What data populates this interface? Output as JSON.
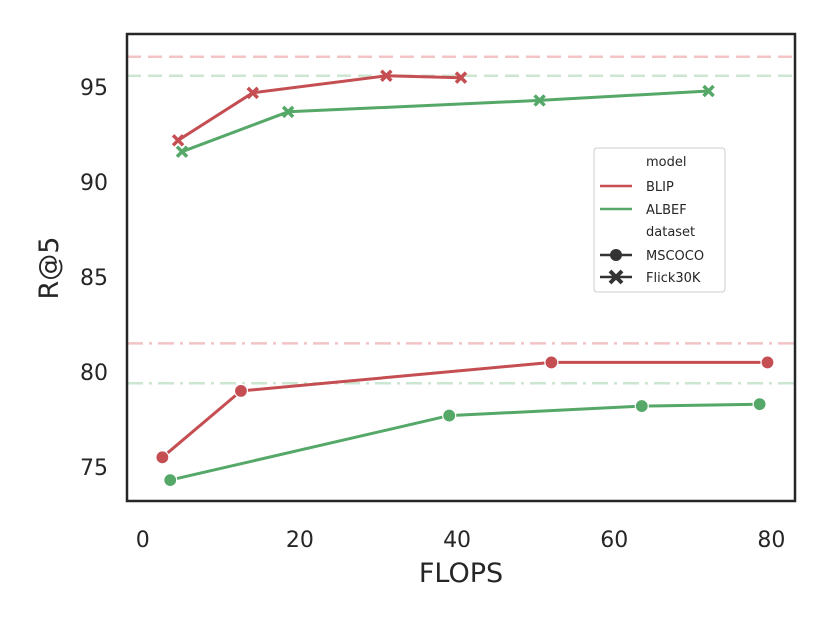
{
  "chart_data": {
    "type": "line",
    "xlabel": "FLOPS",
    "ylabel": "R@5",
    "xlim": [
      -2,
      83
    ],
    "ylim": [
      73.2,
      97.8
    ],
    "x_ticks": [
      0,
      20,
      40,
      60,
      80
    ],
    "y_ticks": [
      75,
      80,
      85,
      90,
      95
    ],
    "grid": false,
    "legend_position": "right",
    "legend": {
      "model_title": "model",
      "dataset_title": "dataset",
      "models": [
        {
          "name": "BLIP",
          "color": "#c44e52"
        },
        {
          "name": "ALBEF",
          "color": "#55a868"
        }
      ],
      "datasets": [
        {
          "name": "MSCOCO",
          "marker": "circle"
        },
        {
          "name": "Flick30K",
          "marker": "x"
        }
      ]
    },
    "series": [
      {
        "model": "BLIP",
        "dataset": "Flick30K",
        "color": "#c44e52",
        "marker": "x",
        "x": [
          4.5,
          14,
          31,
          40.5
        ],
        "y": [
          92.2,
          94.7,
          95.6,
          95.5
        ]
      },
      {
        "model": "ALBEF",
        "dataset": "Flick30K",
        "color": "#55a868",
        "marker": "x",
        "x": [
          5,
          18.5,
          50.5,
          72
        ],
        "y": [
          91.6,
          93.7,
          94.3,
          94.8
        ]
      },
      {
        "model": "BLIP",
        "dataset": "MSCOCO",
        "color": "#c44e52",
        "marker": "circle",
        "x": [
          2.5,
          12.5,
          52,
          79.5
        ],
        "y": [
          75.5,
          79.0,
          80.5,
          80.5
        ]
      },
      {
        "model": "ALBEF",
        "dataset": "MSCOCO",
        "color": "#55a868",
        "marker": "circle",
        "x": [
          3.5,
          39,
          63.5,
          78.5
        ],
        "y": [
          74.3,
          77.7,
          78.2,
          78.3
        ]
      }
    ],
    "reference_lines": [
      {
        "model": "BLIP",
        "dataset": "Flick30K",
        "y": 96.6,
        "style": "dashed",
        "color": "#f2c4c5"
      },
      {
        "model": "ALBEF",
        "dataset": "Flick30K",
        "y": 95.6,
        "style": "dashed",
        "color": "#cde6d2"
      },
      {
        "model": "BLIP",
        "dataset": "MSCOCO",
        "y": 81.5,
        "style": "dashdot",
        "color": "#f2c4c5"
      },
      {
        "model": "ALBEF",
        "dataset": "MSCOCO",
        "y": 79.4,
        "style": "dashdot",
        "color": "#cde6d2"
      }
    ]
  }
}
